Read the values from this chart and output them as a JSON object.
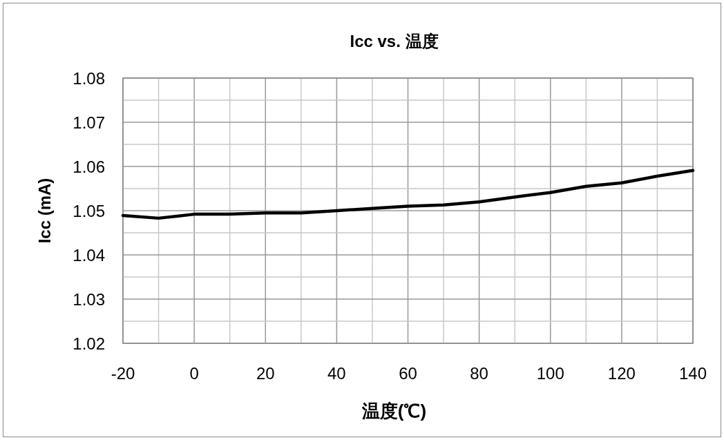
{
  "chart_data": {
    "type": "line",
    "title": "Icc vs. 温度",
    "xlabel": "温度(℃)",
    "ylabel": "Icc (mA)",
    "x": [
      -20,
      -10,
      0,
      10,
      20,
      30,
      40,
      50,
      60,
      70,
      80,
      90,
      100,
      110,
      120,
      130,
      140
    ],
    "series": [
      {
        "color": "#000000",
        "values": [
          1.0489,
          1.0483,
          1.0492,
          1.0492,
          1.0495,
          1.0495,
          1.05,
          1.0505,
          1.051,
          1.0513,
          1.052,
          1.0531,
          1.0541,
          1.0555,
          1.0563,
          1.0578,
          1.0591
        ]
      }
    ],
    "xlim": [
      -20,
      140
    ],
    "ylim": [
      1.02,
      1.08
    ],
    "xticks": [
      -20,
      0,
      20,
      40,
      60,
      80,
      100,
      120,
      140
    ],
    "yticks": [
      1.02,
      1.03,
      1.04,
      1.05,
      1.06,
      1.07,
      1.08
    ],
    "grid": true
  }
}
